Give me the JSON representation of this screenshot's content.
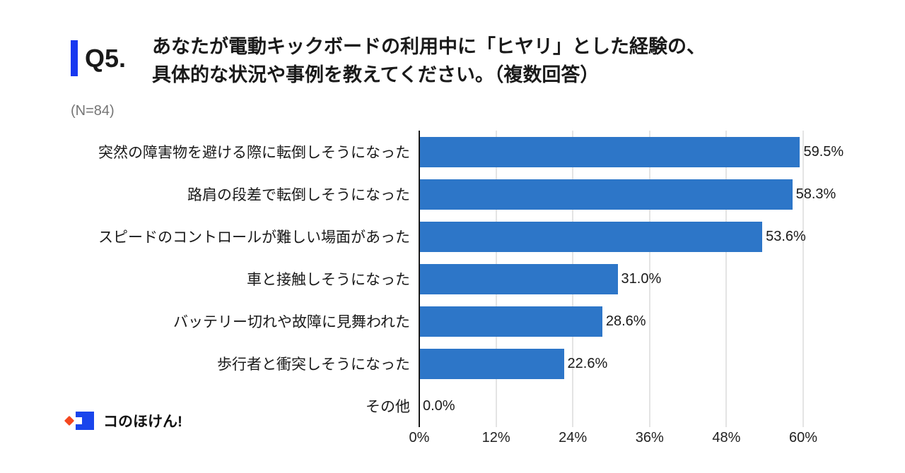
{
  "header": {
    "q_label": "Q5.",
    "title_line1": "あなたが電動キックボードの利用中に「ヒヤリ」とした経験の、",
    "title_line2": "具体的な状況や事例を教えてください。（複数回答）",
    "sample_size": "(N=84)"
  },
  "logo": {
    "text": "コのほけん!"
  },
  "chart_data": {
    "type": "bar",
    "orientation": "horizontal",
    "categories": [
      "突然の障害物を避ける際に転倒しそうになった",
      "路肩の段差で転倒しそうになった",
      "スピードのコントロールが難しい場面があった",
      "車と接触しそうになった",
      "バッテリー切れや故障に見舞われた",
      "歩行者と衝突しそうになった",
      "その他"
    ],
    "values": [
      59.5,
      58.3,
      53.6,
      31.0,
      28.6,
      22.6,
      0.0
    ],
    "value_labels": [
      "59.5%",
      "58.3%",
      "53.6%",
      "31.0%",
      "28.6%",
      "22.6%",
      "0.0%"
    ],
    "xlim": [
      0,
      60
    ],
    "x_ticks": [
      {
        "label": "0%",
        "value": 0
      },
      {
        "label": "12%",
        "value": 12
      },
      {
        "label": "24%",
        "value": 24
      },
      {
        "label": "36%",
        "value": 36
      },
      {
        "label": "48%",
        "value": 48
      },
      {
        "label": "60%",
        "value": 60
      }
    ],
    "grid": true,
    "legend": false,
    "bar_color": "#2D76C8"
  },
  "colors": {
    "accent_bar": "#1838F0",
    "logo_blue": "#1945EC",
    "logo_orange": "#F4471F",
    "gridline": "#C9C9C9",
    "axis_line": "#1A1A1A",
    "muted_text": "#757575"
  }
}
